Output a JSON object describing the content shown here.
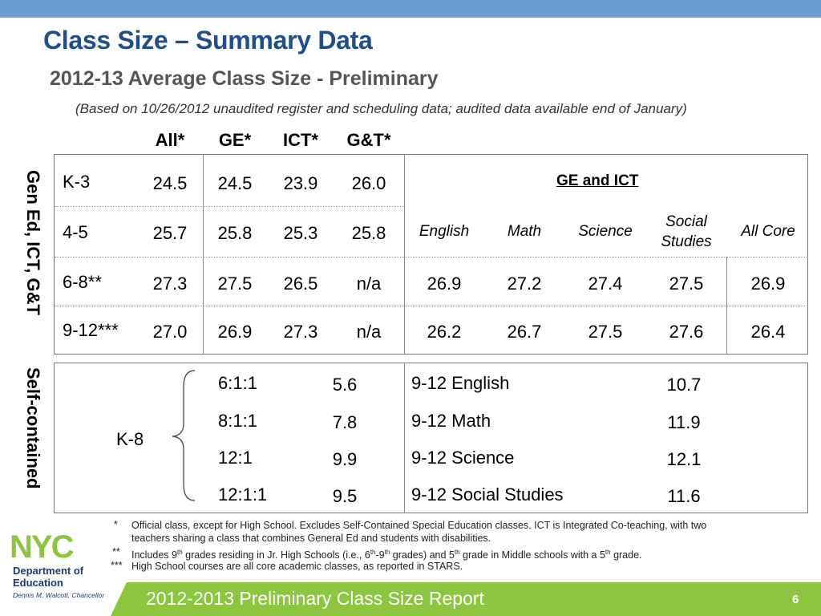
{
  "slide": {
    "title": "Class Size – Summary Data",
    "subtitle": "2012-13 Average Class Size - Preliminary",
    "note": "(Based on 10/26/2012 unaudited register and scheduling data; audited data available end of January)",
    "footer_title": "2012-2013 Preliminary Class Size Report",
    "page_number": "6"
  },
  "colors": {
    "title": "#1f4e8c",
    "top_bar": "#6b9fd1",
    "accent_green": "#8cc63f"
  },
  "gen_section": {
    "side_label": "Gen Ed, ICT, G&T",
    "headers": [
      "All*",
      "GE*",
      "ICT*",
      "G&T*"
    ],
    "rows": [
      {
        "grade": "K-3",
        "values": [
          "24.5",
          "24.5",
          "23.9",
          "26.0"
        ]
      },
      {
        "grade": "4-5",
        "values": [
          "25.7",
          "25.8",
          "25.3",
          "25.8"
        ]
      },
      {
        "grade": "6-8**",
        "values": [
          "27.3",
          "27.5",
          "26.5",
          "n/a"
        ]
      },
      {
        "grade": "9-12***",
        "values": [
          "27.0",
          "26.9",
          "27.3",
          "n/a"
        ]
      }
    ],
    "ge_ict_title": "GE and ICT",
    "subject_headers": [
      "English",
      "Math",
      "Science",
      "Social Studies",
      "All Core"
    ],
    "subject_rows": [
      [
        "26.9",
        "27.2",
        "27.4",
        "27.5",
        "26.9"
      ],
      [
        "26.2",
        "26.7",
        "27.5",
        "27.6",
        "26.4"
      ]
    ]
  },
  "self_section": {
    "side_label": "Self-contained",
    "k8_label": "K-8",
    "ratios": [
      {
        "ratio": "6:1:1",
        "value": "5.6"
      },
      {
        "ratio": "8:1:1",
        "value": "7.8"
      },
      {
        "ratio": "12:1",
        "value": "9.9"
      },
      {
        "ratio": "12:1:1",
        "value": "9.5"
      }
    ],
    "courses": [
      {
        "course": "9-12 English",
        "value": "10.7"
      },
      {
        "course": "9-12 Math",
        "value": "11.9"
      },
      {
        "course": "9-12 Science",
        "value": "12.1"
      },
      {
        "course": "9-12 Social Studies",
        "value": "11.6"
      }
    ]
  },
  "footnotes": {
    "f1_mark": "*",
    "f1_line1": "Official class, except for High School. Excludes Self-Contained Special Education classes. ICT is Integrated Co-teaching, with two",
    "f1_line2": "teachers sharing a class that combines General Ed and students with disabilities.",
    "f2_mark": "**",
    "f2_a": "Includes 9",
    "f2_b": " grades residing in Jr. High Schools (i.e., 6",
    "f2_c": "-9",
    "f2_d": " grades) and 5",
    "f2_e": " grade in Middle schools with a 5",
    "f2_f": " grade.",
    "th": "th",
    "f3_mark": "***",
    "f3_text": "High School courses are all core academic classes, as reported in STARS."
  },
  "logo": {
    "nyc": "NYC",
    "dept_line1": "Department of",
    "dept_line2": "Education",
    "chancellor": "Dennis M. Walcott, Chancellor"
  }
}
